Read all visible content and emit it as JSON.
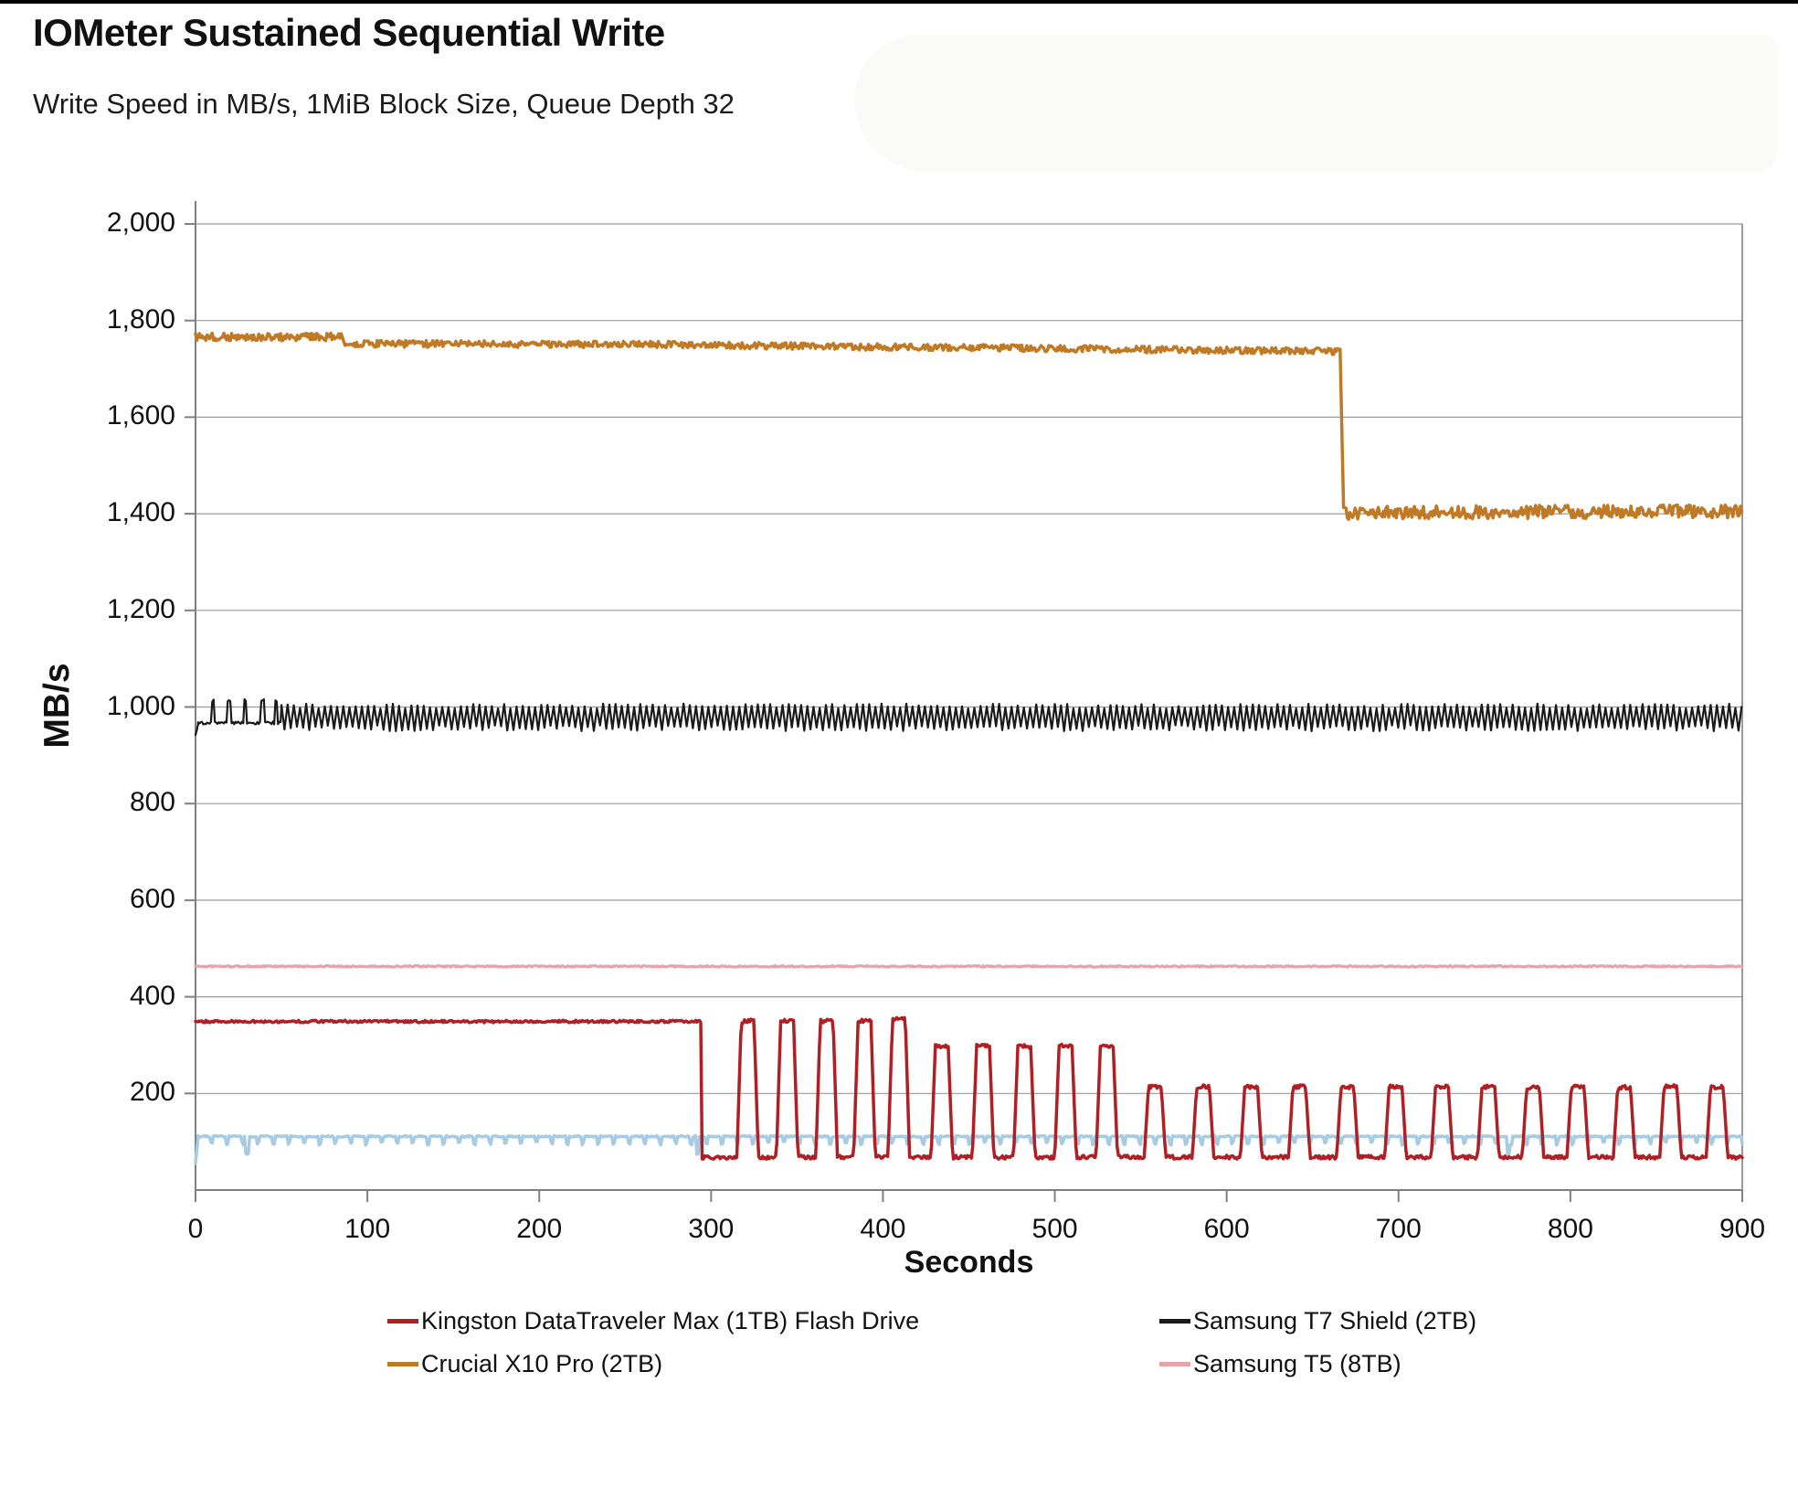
{
  "chart_data": {
    "type": "line",
    "title": "IOMeter Sustained Sequential Write",
    "subtitle": "Write Speed in MB/s, 1MiB Block Size, Queue Depth 32",
    "xlabel": "Seconds",
    "ylabel": "MB/s",
    "x_range": [
      0,
      900
    ],
    "y_range": [
      0,
      2000
    ],
    "grid": "horizontal",
    "legend_position": "bottom-two-columns",
    "axis_color": "#808080",
    "grid_color": "#9b9b9b",
    "x_ticks": [
      {
        "value": 0,
        "label": "0"
      },
      {
        "value": 100,
        "label": "100"
      },
      {
        "value": 200,
        "label": "200"
      },
      {
        "value": 300,
        "label": "300"
      },
      {
        "value": 400,
        "label": "400"
      },
      {
        "value": 500,
        "label": "500"
      },
      {
        "value": 600,
        "label": "600"
      },
      {
        "value": 700,
        "label": "700"
      },
      {
        "value": 800,
        "label": "800"
      },
      {
        "value": 900,
        "label": "900"
      }
    ],
    "y_ticks": [
      {
        "value": 200,
        "label": "200"
      },
      {
        "value": 400,
        "label": "400"
      },
      {
        "value": 600,
        "label": "600"
      },
      {
        "value": 800,
        "label": "800"
      },
      {
        "value": 1000,
        "label": "1,000"
      },
      {
        "value": 1200,
        "label": "1,200"
      },
      {
        "value": 1400,
        "label": "1,400"
      },
      {
        "value": 1600,
        "label": "1,600"
      },
      {
        "value": 1800,
        "label": "1,800"
      },
      {
        "value": 2000,
        "label": "2,000"
      }
    ],
    "legend": [
      {
        "label": "Kingston DataTraveler Max (1TB)  Flash Drive",
        "color": "#af1f24"
      },
      {
        "label": "Samsung T7 Shield (2TB)",
        "color": "#1a1a1a"
      },
      {
        "label": "Crucial X10 Pro (2TB)",
        "color": "#c07a26"
      },
      {
        "label": "Samsung T5 (8TB)",
        "color": "#e8a2aa"
      }
    ],
    "series": [
      {
        "name": "Samsung T5 (8TB)",
        "color": "#e8a2aa",
        "width": 3.2,
        "sample_step": 0.75,
        "segments": [
          {
            "type": "flat",
            "from_s": 0,
            "to_s": 900,
            "value": 463,
            "noise": 1.5
          }
        ]
      },
      {
        "name": "",
        "color": "#a6cbe3",
        "width": 3.5,
        "sample_step": 0.75,
        "segments": [
          {
            "type": "ramp",
            "from_s": 0,
            "to_s": 1.5,
            "start_value": 55,
            "end_value": 108,
            "noise": 1
          },
          {
            "type": "flat_with_dips",
            "from_s": 1.5,
            "to_s": 900,
            "value": 111,
            "noise": 1.5,
            "dip_every_s": 9,
            "dip_value": 93,
            "deep_dip_times": [
              30,
              292,
              764
            ],
            "deep_dip_value": 72
          }
        ]
      },
      {
        "name": "Samsung T7 Shield (2TB)",
        "color": "#1a1a1a",
        "width": 2.2,
        "sample_step": 0.75,
        "segments": [
          {
            "type": "ramp",
            "from_s": 0,
            "to_s": 1.5,
            "start_value": 942,
            "end_value": 965,
            "noise": 2
          },
          {
            "type": "spiky_flat",
            "from_s": 1.5,
            "to_s": 50,
            "value": 967,
            "noise": 3,
            "spike_times": [
              10,
              19.5,
              29,
              39,
              47
            ],
            "spike_value": 1016,
            "spike_width_s": 1.6
          },
          {
            "type": "oscillation",
            "from_s": 50,
            "to_s": 900,
            "low": 950,
            "high": 1007,
            "period_s": 3.6
          }
        ]
      },
      {
        "name": "Crucial X10 Pro (2TB)",
        "color": "#c07a26",
        "width": 3.5,
        "sample_step": 0.75,
        "segments": [
          {
            "type": "flat",
            "from_s": 0,
            "to_s": 85,
            "value": 1766,
            "noise": 8
          },
          {
            "type": "ramp",
            "from_s": 87,
            "to_s": 300,
            "start_value": 1752,
            "end_value": 1750,
            "noise": 7
          },
          {
            "type": "ramp",
            "from_s": 300,
            "to_s": 666,
            "start_value": 1749,
            "end_value": 1736,
            "noise": 7
          },
          {
            "type": "ramp",
            "from_s": 668,
            "to_s": 900,
            "start_value": 1402,
            "end_value": 1405,
            "noise": 14
          }
        ]
      },
      {
        "name": "Kingston DataTraveler Max (1TB)  Flash Drive",
        "color": "#af1f24",
        "width": 3.5,
        "sample_step": 0.75,
        "segments": [
          {
            "type": "flat",
            "from_s": 0,
            "to_s": 294,
            "value": 349,
            "noise": 2.5
          },
          {
            "type": "burst_train",
            "from_s": 294.75,
            "to_s": 900,
            "low_value": 68,
            "low_noise": 4,
            "rise_s": 2.5,
            "hold_s": 7.5,
            "fall_s": 2.5,
            "bursts": [
              {
                "start_s": 315,
                "peak": 350
              },
              {
                "start_s": 338,
                "peak": 351
              },
              {
                "start_s": 361,
                "peak": 350
              },
              {
                "start_s": 383,
                "peak": 350
              },
              {
                "start_s": 403,
                "peak": 355
              },
              {
                "start_s": 428,
                "peak": 297
              },
              {
                "start_s": 452,
                "peak": 298
              },
              {
                "start_s": 476,
                "peak": 297
              },
              {
                "start_s": 500,
                "peak": 298
              },
              {
                "start_s": 524,
                "peak": 296
              },
              {
                "start_s": 552,
                "peak": 213
              },
              {
                "start_s": 580,
                "peak": 214
              },
              {
                "start_s": 608,
                "peak": 213
              },
              {
                "start_s": 636,
                "peak": 214
              },
              {
                "start_s": 664,
                "peak": 213
              },
              {
                "start_s": 692,
                "peak": 214
              },
              {
                "start_s": 719,
                "peak": 213
              },
              {
                "start_s": 746,
                "peak": 214
              },
              {
                "start_s": 772,
                "peak": 213
              },
              {
                "start_s": 798,
                "peak": 215
              },
              {
                "start_s": 825,
                "peak": 213
              },
              {
                "start_s": 852,
                "peak": 215
              },
              {
                "start_s": 879,
                "peak": 213
              }
            ]
          }
        ]
      }
    ]
  }
}
